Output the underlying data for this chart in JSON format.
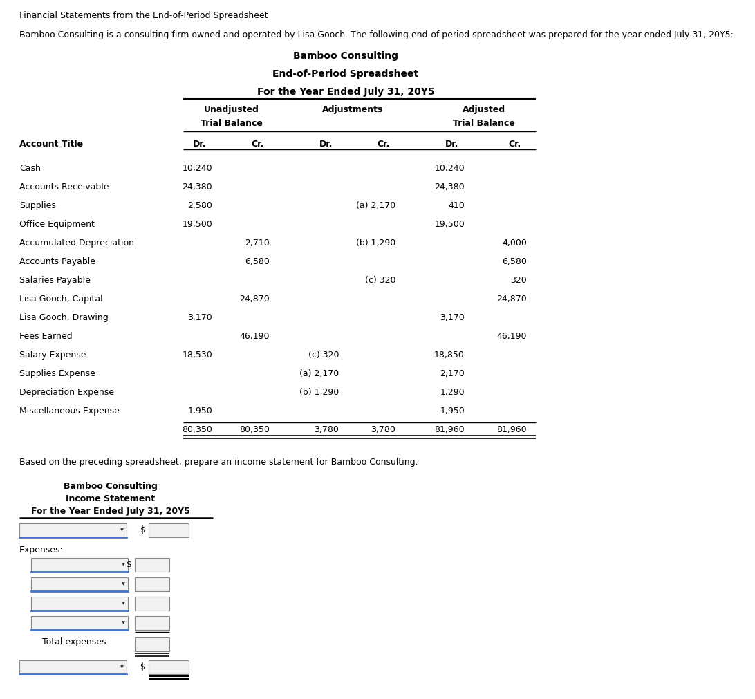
{
  "page_title": "Financial Statements from the End-of-Period Spreadsheet",
  "intro_text": "Bamboo Consulting is a consulting firm owned and operated by Lisa Gooch. The following end-of-period spreadsheet was prepared for the year ended July 31, 20Y5:",
  "spreadsheet_title1": "Bamboo Consulting",
  "spreadsheet_title2": "End-of-Period Spreadsheet",
  "spreadsheet_title3": "For the Year Ended July 31, 20Y5",
  "account_col_header": "Account Title",
  "accounts": [
    {
      "name": "Cash",
      "utb_dr": "10,240",
      "utb_cr": "",
      "adj_dr": "",
      "adj_cr": "",
      "atb_dr": "10,240",
      "atb_cr": ""
    },
    {
      "name": "Accounts Receivable",
      "utb_dr": "24,380",
      "utb_cr": "",
      "adj_dr": "",
      "adj_cr": "",
      "atb_dr": "24,380",
      "atb_cr": ""
    },
    {
      "name": "Supplies",
      "utb_dr": "2,580",
      "utb_cr": "",
      "adj_dr": "",
      "adj_cr": "(a) 2,170",
      "atb_dr": "410",
      "atb_cr": ""
    },
    {
      "name": "Office Equipment",
      "utb_dr": "19,500",
      "utb_cr": "",
      "adj_dr": "",
      "adj_cr": "",
      "atb_dr": "19,500",
      "atb_cr": ""
    },
    {
      "name": "Accumulated Depreciation",
      "utb_dr": "",
      "utb_cr": "2,710",
      "adj_dr": "",
      "adj_cr": "(b) 1,290",
      "atb_dr": "",
      "atb_cr": "4,000"
    },
    {
      "name": "Accounts Payable",
      "utb_dr": "",
      "utb_cr": "6,580",
      "adj_dr": "",
      "adj_cr": "",
      "atb_dr": "",
      "atb_cr": "6,580"
    },
    {
      "name": "Salaries Payable",
      "utb_dr": "",
      "utb_cr": "",
      "adj_dr": "",
      "adj_cr": "(c) 320",
      "atb_dr": "",
      "atb_cr": "320"
    },
    {
      "name": "Lisa Gooch, Capital",
      "utb_dr": "",
      "utb_cr": "24,870",
      "adj_dr": "",
      "adj_cr": "",
      "atb_dr": "",
      "atb_cr": "24,870"
    },
    {
      "name": "Lisa Gooch, Drawing",
      "utb_dr": "3,170",
      "utb_cr": "",
      "adj_dr": "",
      "adj_cr": "",
      "atb_dr": "3,170",
      "atb_cr": ""
    },
    {
      "name": "Fees Earned",
      "utb_dr": "",
      "utb_cr": "46,190",
      "adj_dr": "",
      "adj_cr": "",
      "atb_dr": "",
      "atb_cr": "46,190"
    },
    {
      "name": "Salary Expense",
      "utb_dr": "18,530",
      "utb_cr": "",
      "adj_dr": "(c) 320",
      "adj_cr": "",
      "atb_dr": "18,850",
      "atb_cr": ""
    },
    {
      "name": "Supplies Expense",
      "utb_dr": "",
      "utb_cr": "",
      "adj_dr": "(a) 2,170",
      "adj_cr": "",
      "atb_dr": "2,170",
      "atb_cr": ""
    },
    {
      "name": "Depreciation Expense",
      "utb_dr": "",
      "utb_cr": "",
      "adj_dr": "(b) 1,290",
      "adj_cr": "",
      "atb_dr": "1,290",
      "atb_cr": ""
    },
    {
      "name": "Miscellaneous Expense",
      "utb_dr": "1,950",
      "utb_cr": "",
      "adj_dr": "",
      "adj_cr": "",
      "atb_dr": "1,950",
      "atb_cr": ""
    }
  ],
  "totals": {
    "utb_dr": "80,350",
    "utb_cr": "80,350",
    "adj_dr": "3,780",
    "adj_cr": "3,780",
    "atb_dr": "81,960",
    "atb_cr": "81,960"
  },
  "bottom_text": "Based on the preceding spreadsheet, prepare an income statement for Bamboo Consulting.",
  "income_title1": "Bamboo Consulting",
  "income_title2": "Income Statement",
  "income_title3": "For the Year Ended July 31, 20Y5",
  "expenses_label": "Expenses:",
  "total_expenses_label": "Total expenses",
  "bg_color": "#ffffff",
  "text_color": "#000000",
  "dropdown_color": "#4472c4"
}
